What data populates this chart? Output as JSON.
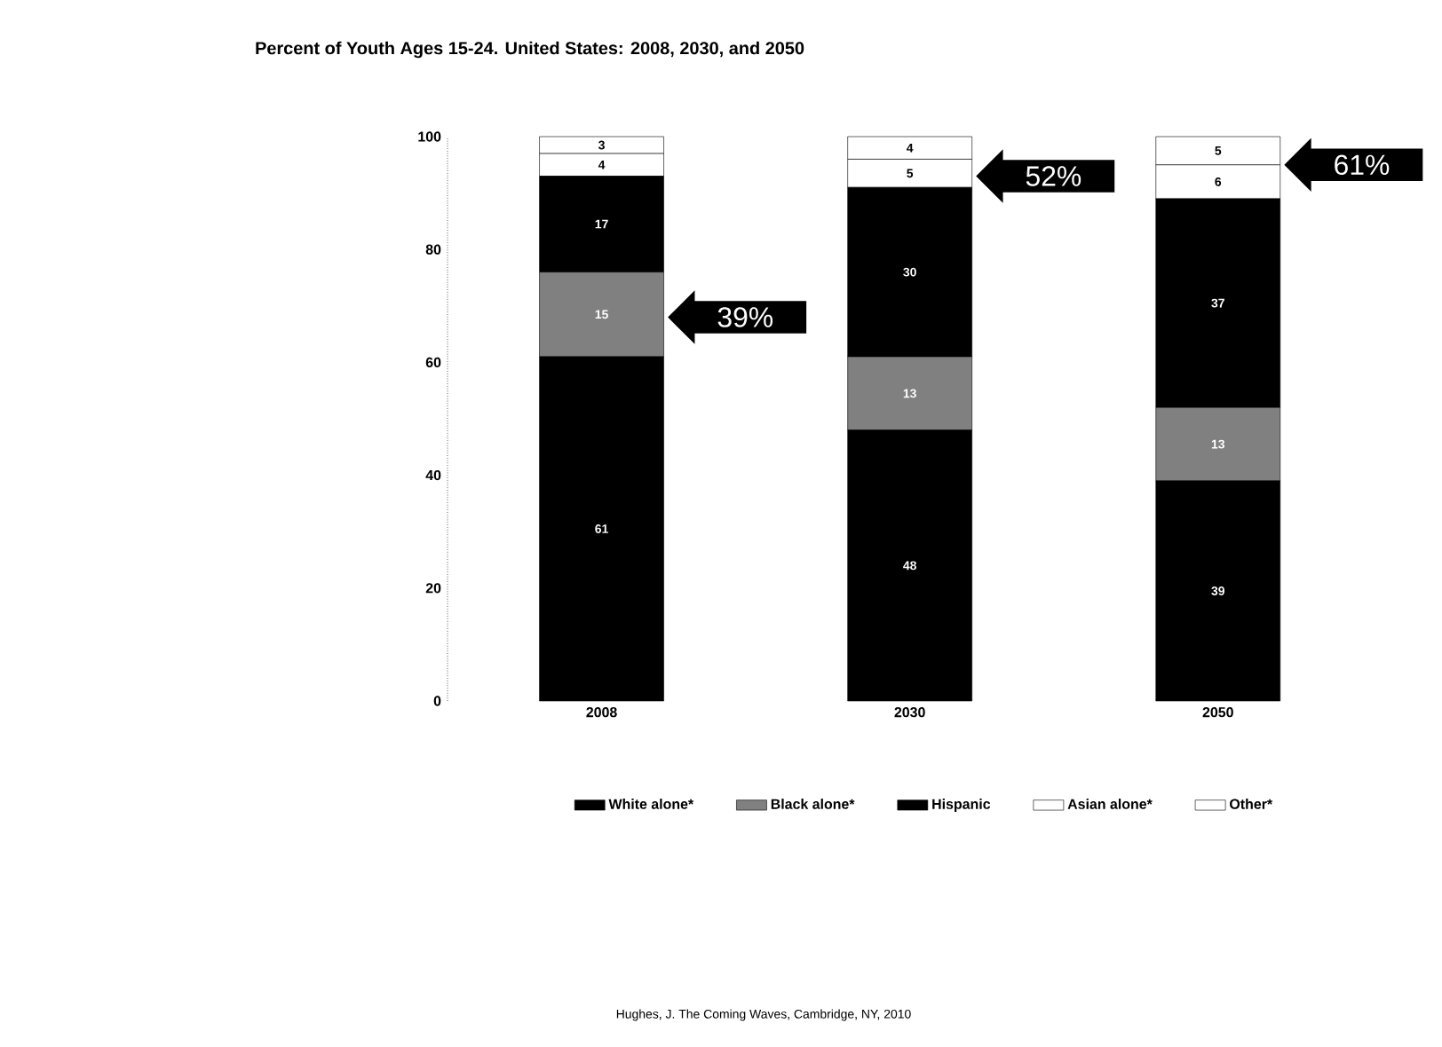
{
  "chart_data": {
    "type": "bar",
    "stacked": true,
    "title": "Percent of Youth Ages 15-24. United States: 2008, 2030, and 2050",
    "categories": [
      "2008",
      "2030",
      "2050"
    ],
    "series": [
      {
        "name": "White alone*",
        "color": "#000000",
        "values": [
          61,
          48,
          39
        ]
      },
      {
        "name": "Black alone*",
        "color": "#808080",
        "values": [
          15,
          13,
          13
        ]
      },
      {
        "name": "Hispanic",
        "color": "#000000",
        "values": [
          17,
          30,
          37
        ]
      },
      {
        "name": "Asian alone*",
        "color": "#ffffff",
        "values": [
          4,
          5,
          6
        ]
      },
      {
        "name": "Other*",
        "color": "#ffffff",
        "values": [
          3,
          4,
          5
        ]
      }
    ],
    "ylim": [
      0,
      100
    ],
    "yticks": [
      0,
      20,
      40,
      60,
      80,
      100
    ],
    "data_labels": true,
    "legend": "bottom",
    "grid": false,
    "annotations": [
      "39%",
      "52%",
      "61%",
      "Hughes, J. The Coming Waves, Cambridge, NY, 2010"
    ]
  }
}
